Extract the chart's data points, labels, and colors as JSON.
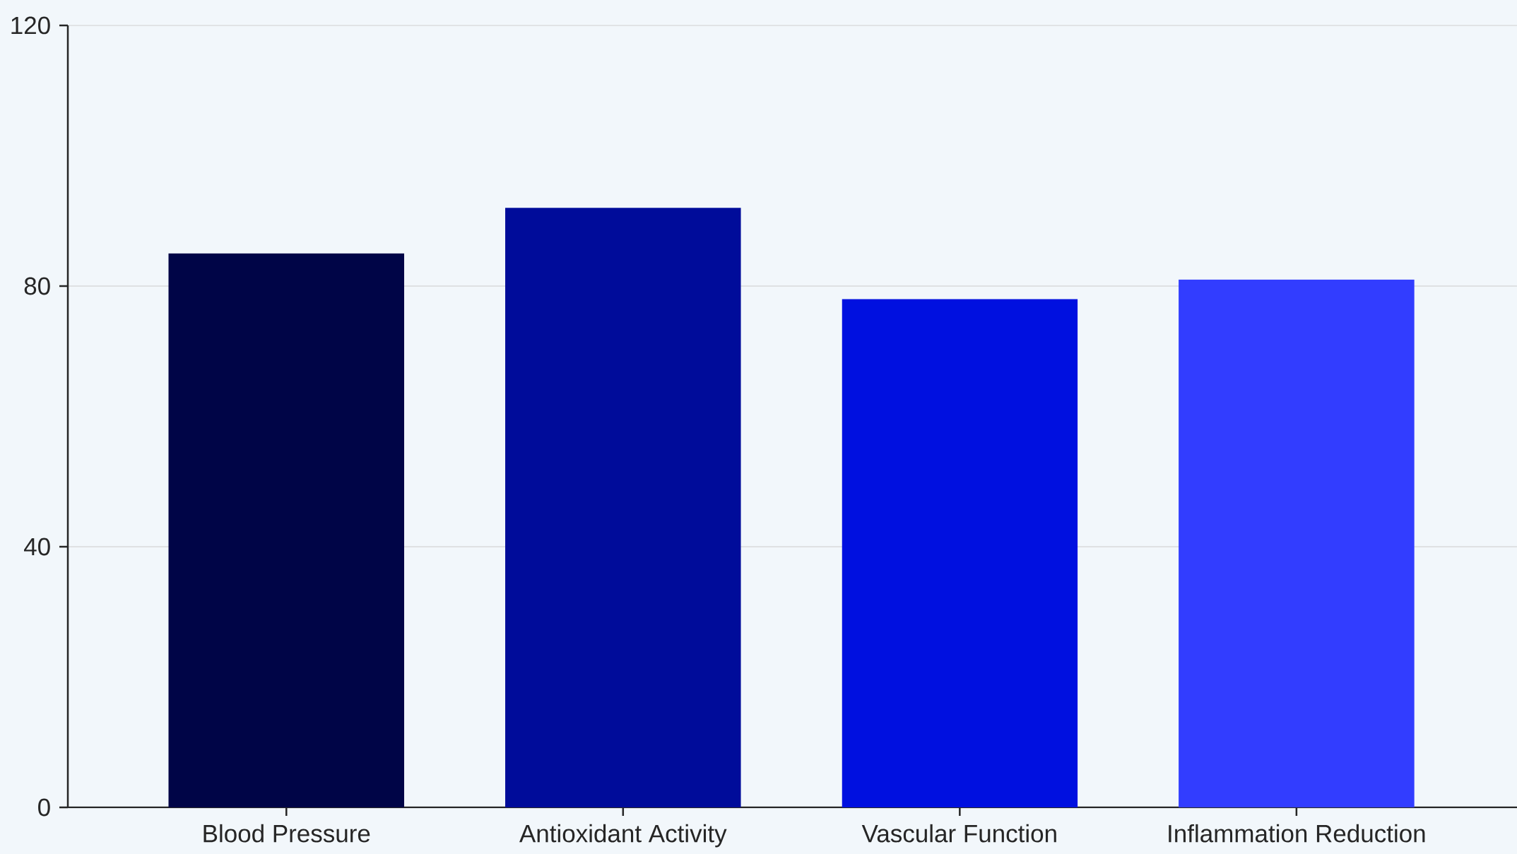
{
  "chart_data": {
    "type": "bar",
    "categories": [
      "Blood Pressure",
      "Antioxidant Activity",
      "Vascular Function",
      "Inflammation Reduction"
    ],
    "values": [
      85,
      92,
      78,
      81
    ],
    "colors": [
      "#000547",
      "#000c9a",
      "#0010e0",
      "#323dff"
    ],
    "ylim": [
      0,
      120
    ],
    "yticks": [
      0,
      40,
      80,
      120
    ],
    "grid": "y"
  }
}
